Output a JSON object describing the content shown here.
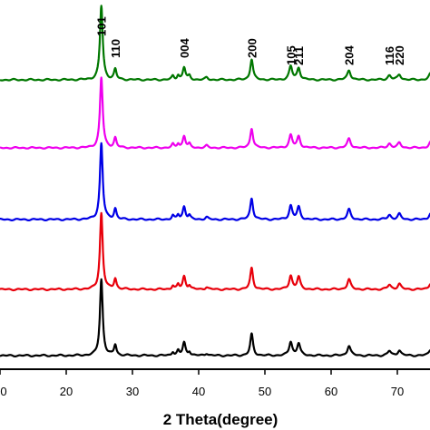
{
  "chart_data": {
    "type": "line",
    "title": "",
    "xlabel": "2 Theta(degree)",
    "ylabel": "",
    "xlim": [
      10,
      75
    ],
    "xticks": [
      "0",
      "20",
      "30",
      "40",
      "50",
      "60",
      "70"
    ],
    "grid": false,
    "legend": "none",
    "peak_labels": [
      {
        "label": "101",
        "x": 25.3
      },
      {
        "label": "110",
        "x": 27.4
      },
      {
        "label": "004",
        "x": 37.8
      },
      {
        "label": "200",
        "x": 48.0
      },
      {
        "label": "105",
        "x": 53.9
      },
      {
        "label": "211",
        "x": 55.1
      },
      {
        "label": "204",
        "x": 62.7
      },
      {
        "label": "116",
        "x": 68.8
      },
      {
        "label": "220",
        "x": 70.3
      }
    ],
    "peaks": [
      {
        "x": 25.3,
        "w": 0.25,
        "h": 1.0
      },
      {
        "x": 27.4,
        "w": 0.22,
        "h": 0.14
      },
      {
        "x": 36.1,
        "w": 0.2,
        "h": 0.05
      },
      {
        "x": 36.9,
        "w": 0.2,
        "h": 0.06
      },
      {
        "x": 37.8,
        "w": 0.25,
        "h": 0.17
      },
      {
        "x": 38.6,
        "w": 0.2,
        "h": 0.05
      },
      {
        "x": 41.2,
        "w": 0.25,
        "h": 0.03
      },
      {
        "x": 48.0,
        "w": 0.25,
        "h": 0.28
      },
      {
        "x": 53.9,
        "w": 0.28,
        "h": 0.18
      },
      {
        "x": 55.1,
        "w": 0.28,
        "h": 0.16
      },
      {
        "x": 62.7,
        "w": 0.3,
        "h": 0.13
      },
      {
        "x": 68.8,
        "w": 0.3,
        "h": 0.06
      },
      {
        "x": 70.3,
        "w": 0.3,
        "h": 0.07
      },
      {
        "x": 75.0,
        "w": 0.3,
        "h": 0.08
      }
    ],
    "series": [
      {
        "color": "#000000",
        "scale": 1.0
      },
      {
        "color": "#e8000b",
        "scale": 1.0
      },
      {
        "color": "#0000e6",
        "scale": 1.0
      },
      {
        "color": "#ee00ee",
        "scale": 0.92
      },
      {
        "color": "#007700",
        "scale": 0.97
      }
    ]
  }
}
